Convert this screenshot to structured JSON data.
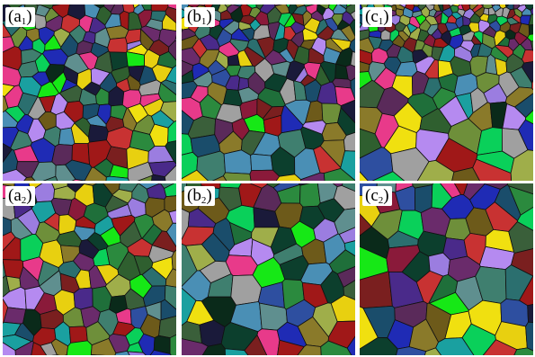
{
  "panels": [
    {
      "letter": "a",
      "index": "1",
      "open": "(",
      "close": ")",
      "seed": 11,
      "sizing": "mixed-small"
    },
    {
      "letter": "b",
      "index": "1",
      "open": "(",
      "close": ")",
      "seed": 23,
      "sizing": "small-top"
    },
    {
      "letter": "c",
      "index": "1",
      "open": "(",
      "close": ")",
      "seed": 37,
      "sizing": "tiny-top-large-bottom"
    },
    {
      "letter": "a",
      "index": "2",
      "open": "(",
      "close": ")",
      "seed": 51,
      "sizing": "uniform-medium"
    },
    {
      "letter": "b",
      "index": "2",
      "open": "(",
      "close": ")",
      "seed": 67,
      "sizing": "medium-large"
    },
    {
      "letter": "c",
      "index": "2",
      "open": "(",
      "close": ")",
      "seed": 83,
      "sizing": "large"
    }
  ],
  "palette": [
    "#0c3f2d",
    "#1f6f3a",
    "#2b8a3e",
    "#3a5f3a",
    "#1a4d6b",
    "#2e4fa0",
    "#1f2bb5",
    "#4a2a8a",
    "#6a2b6b",
    "#8a1a3a",
    "#a01818",
    "#7a1f1f",
    "#6d5a1a",
    "#8a7a2a",
    "#9fae4a",
    "#6e8f3a",
    "#3f7f6f",
    "#5f8f8f",
    "#2b6f6f",
    "#0a2a1a",
    "#1a1a3a",
    "#9b7de0",
    "#b58af0",
    "#16e816",
    "#0ad05a",
    "#f0e010",
    "#e8d010",
    "#c83232",
    "#e83a8a",
    "#a0a0a0",
    "#4a8fb5",
    "#1aa0a0",
    "#2f5f2f",
    "#5a2a5a"
  ]
}
